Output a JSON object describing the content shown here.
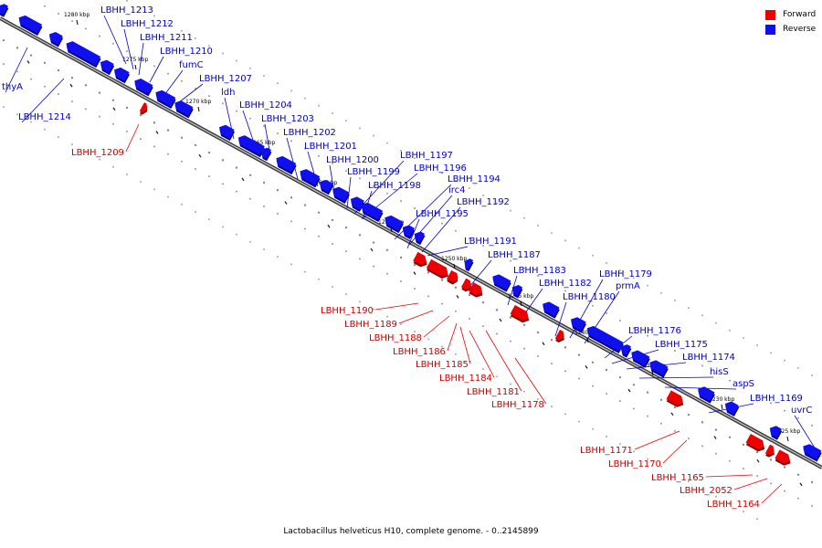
{
  "caption": "Lactobacillus helveticus H10, complete genome. - 0..2145899",
  "legend": {
    "forward": "Forward",
    "reverse": "Reverse"
  },
  "colors": {
    "forward": "#ee0000",
    "reverse": "#1010ee",
    "backbone": "#666666",
    "leader_forward": "#ee0000",
    "leader_reverse": "#0000cc"
  },
  "scale_ticks": [
    "1280 kbp",
    "1275 kbp",
    "1270 kbp",
    "1265 kbp",
    "1260 kbp",
    "1255 kbp",
    "1250 kbp",
    "1245 kbp",
    "1240 kbp",
    "1235 kbp",
    "1230 kbp",
    "1225 kbp"
  ],
  "genes": [
    {
      "id": "g1",
      "strand": "reverse"
    },
    {
      "id": "g2",
      "strand": "reverse"
    },
    {
      "id": "g3",
      "strand": "reverse"
    },
    {
      "id": "g4",
      "strand": "reverse"
    },
    {
      "id": "g5",
      "strand": "reverse"
    },
    {
      "id": "g6",
      "strand": "reverse"
    },
    {
      "id": "g7",
      "strand": "reverse"
    },
    {
      "id": "g8",
      "strand": "reverse"
    },
    {
      "id": "g9",
      "strand": "reverse"
    },
    {
      "id": "g10",
      "strand": "reverse"
    },
    {
      "id": "g11",
      "strand": "reverse"
    },
    {
      "id": "g12",
      "strand": "reverse"
    },
    {
      "id": "g13",
      "strand": "reverse"
    },
    {
      "id": "g14",
      "strand": "reverse"
    },
    {
      "id": "g15",
      "strand": "reverse"
    },
    {
      "id": "g16",
      "strand": "reverse"
    },
    {
      "id": "g17",
      "strand": "reverse"
    },
    {
      "id": "g18",
      "strand": "reverse"
    },
    {
      "id": "g19",
      "strand": "reverse"
    },
    {
      "id": "g20",
      "strand": "reverse"
    },
    {
      "id": "g21",
      "strand": "reverse"
    },
    {
      "id": "g22",
      "strand": "reverse"
    },
    {
      "id": "g23",
      "strand": "reverse"
    },
    {
      "id": "g24",
      "strand": "reverse"
    },
    {
      "id": "g25",
      "strand": "reverse"
    },
    {
      "id": "g26",
      "strand": "reverse"
    },
    {
      "id": "g27",
      "strand": "reverse"
    },
    {
      "id": "g28",
      "strand": "reverse"
    },
    {
      "id": "g29",
      "strand": "reverse"
    },
    {
      "id": "g30",
      "strand": "reverse"
    },
    {
      "id": "g31",
      "strand": "reverse"
    },
    {
      "id": "g32",
      "strand": "reverse"
    },
    {
      "id": "g33",
      "strand": "reverse"
    },
    {
      "id": "g34",
      "strand": "reverse"
    },
    {
      "id": "g35",
      "strand": "reverse"
    },
    {
      "id": "g36",
      "strand": "forward"
    },
    {
      "id": "g37",
      "strand": "forward"
    },
    {
      "id": "g38",
      "strand": "forward"
    },
    {
      "id": "g39",
      "strand": "forward"
    },
    {
      "id": "g40",
      "strand": "forward"
    },
    {
      "id": "g41",
      "strand": "forward"
    },
    {
      "id": "g42",
      "strand": "forward"
    },
    {
      "id": "g43",
      "strand": "forward"
    },
    {
      "id": "g44",
      "strand": "forward"
    },
    {
      "id": "g45",
      "strand": "forward"
    },
    {
      "id": "g46",
      "strand": "forward"
    },
    {
      "id": "g47",
      "strand": "forward"
    },
    {
      "id": "g48",
      "strand": "forward"
    }
  ],
  "labels": [
    {
      "text": "LBHH_1213",
      "strand": "reverse"
    },
    {
      "text": "LBHH_1212",
      "strand": "reverse"
    },
    {
      "text": "LBHH_1211",
      "strand": "reverse"
    },
    {
      "text": "LBHH_1210",
      "strand": "reverse"
    },
    {
      "text": "fumC",
      "strand": "reverse"
    },
    {
      "text": "LBHH_1207",
      "strand": "reverse"
    },
    {
      "text": "thyA",
      "strand": "reverse"
    },
    {
      "text": "ldh",
      "strand": "reverse"
    },
    {
      "text": "LBHH_1214",
      "strand": "reverse"
    },
    {
      "text": "LBHH_1204",
      "strand": "reverse"
    },
    {
      "text": "LBHH_1203",
      "strand": "reverse"
    },
    {
      "text": "LBHH_1202",
      "strand": "reverse"
    },
    {
      "text": "LBHH_1201",
      "strand": "reverse"
    },
    {
      "text": "LBHH_1200",
      "strand": "reverse"
    },
    {
      "text": "LBHH_1197",
      "strand": "reverse"
    },
    {
      "text": "LBHH_1199",
      "strand": "reverse"
    },
    {
      "text": "LBHH_1196",
      "strand": "reverse"
    },
    {
      "text": "LBHH_1194",
      "strand": "reverse"
    },
    {
      "text": "LBHH_1198",
      "strand": "reverse"
    },
    {
      "text": "irc4",
      "strand": "reverse"
    },
    {
      "text": "LBHH_1192",
      "strand": "reverse"
    },
    {
      "text": "LBHH_1195",
      "strand": "reverse"
    },
    {
      "text": "LBHH_1191",
      "strand": "reverse"
    },
    {
      "text": "LBHH_1187",
      "strand": "reverse"
    },
    {
      "text": "LBHH_1183",
      "strand": "reverse"
    },
    {
      "text": "LBHH_1182",
      "strand": "reverse"
    },
    {
      "text": "LBHH_1179",
      "strand": "reverse"
    },
    {
      "text": "prmA",
      "strand": "reverse"
    },
    {
      "text": "LBHH_1180",
      "strand": "reverse"
    },
    {
      "text": "LBHH_1176",
      "strand": "reverse"
    },
    {
      "text": "LBHH_1175",
      "strand": "reverse"
    },
    {
      "text": "LBHH_1174",
      "strand": "reverse"
    },
    {
      "text": "hisS",
      "strand": "reverse"
    },
    {
      "text": "aspS",
      "strand": "reverse"
    },
    {
      "text": "LBHH_1169",
      "strand": "reverse"
    },
    {
      "text": "uvrC",
      "strand": "reverse"
    },
    {
      "text": "LBHH_1209",
      "strand": "forward"
    },
    {
      "text": "LBHH_1190",
      "strand": "forward"
    },
    {
      "text": "LBHH_1189",
      "strand": "forward"
    },
    {
      "text": "LBHH_1188",
      "strand": "forward"
    },
    {
      "text": "LBHH_1186",
      "strand": "forward"
    },
    {
      "text": "LBHH_1185",
      "strand": "forward"
    },
    {
      "text": "LBHH_1184",
      "strand": "forward"
    },
    {
      "text": "LBHH_1181",
      "strand": "forward"
    },
    {
      "text": "LBHH_1178",
      "strand": "forward"
    },
    {
      "text": "LBHH_1171",
      "strand": "forward"
    },
    {
      "text": "LBHH_1170",
      "strand": "forward"
    },
    {
      "text": "LBHH_1165",
      "strand": "forward"
    },
    {
      "text": "LBHH_2052",
      "strand": "forward"
    },
    {
      "text": "LBHH_1164",
      "strand": "forward"
    }
  ]
}
